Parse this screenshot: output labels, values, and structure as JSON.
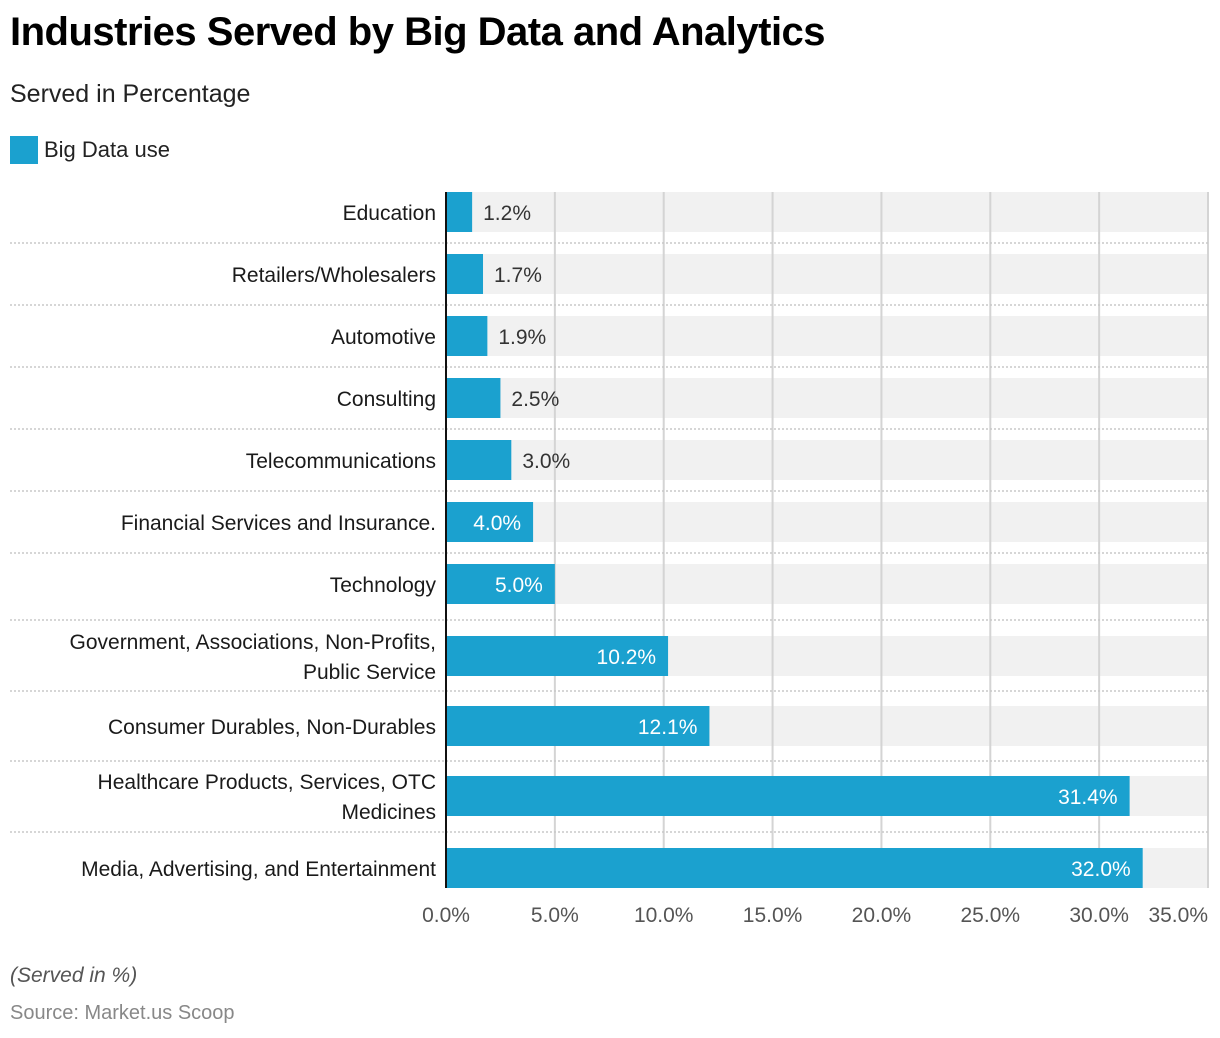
{
  "header": {
    "title": "Industries Served by Big Data and Analytics",
    "subtitle": "Served in Percentage"
  },
  "legend": {
    "label": "Big Data use",
    "color": "#1ba1cf"
  },
  "footer": {
    "note": "(Served in %)",
    "source": "Source: Market.us Scoop"
  },
  "chart_data": {
    "type": "bar",
    "orientation": "horizontal",
    "title": "Industries Served by Big Data and Analytics",
    "subtitle": "Served in Percentage",
    "xlabel": "",
    "ylabel": "",
    "xlim": [
      0,
      35
    ],
    "x_ticks": [
      "0.0%",
      "5.0%",
      "10.0%",
      "15.0%",
      "20.0%",
      "25.0%",
      "30.0%",
      "35.0%"
    ],
    "x_tick_values": [
      0,
      5,
      10,
      15,
      20,
      25,
      30,
      35
    ],
    "grid": true,
    "legend_position": "top-left",
    "categories": [
      [
        "Education"
      ],
      [
        "Retailers/Wholesalers"
      ],
      [
        "Automotive"
      ],
      [
        "Consulting"
      ],
      [
        "Telecommunications"
      ],
      [
        "Financial Services and Insurance."
      ],
      [
        "Technology"
      ],
      [
        "Government, Associations, Non-Profits,",
        "Public Service"
      ],
      [
        "Consumer Durables, Non-Durables"
      ],
      [
        "Healthcare Products, Services, OTC",
        "Medicines"
      ],
      [
        "Media, Advertising, and Entertainment"
      ]
    ],
    "series": [
      {
        "name": "Big Data use",
        "color": "#1ba1cf",
        "values": [
          1.2,
          1.7,
          1.9,
          2.5,
          3.0,
          4.0,
          5.0,
          10.2,
          12.1,
          31.4,
          32.0
        ],
        "labels": [
          "1.2%",
          "1.7%",
          "1.9%",
          "2.5%",
          "3.0%",
          "4.0%",
          "5.0%",
          "10.2%",
          "12.1%",
          "31.4%",
          "32.0%"
        ]
      }
    ]
  }
}
